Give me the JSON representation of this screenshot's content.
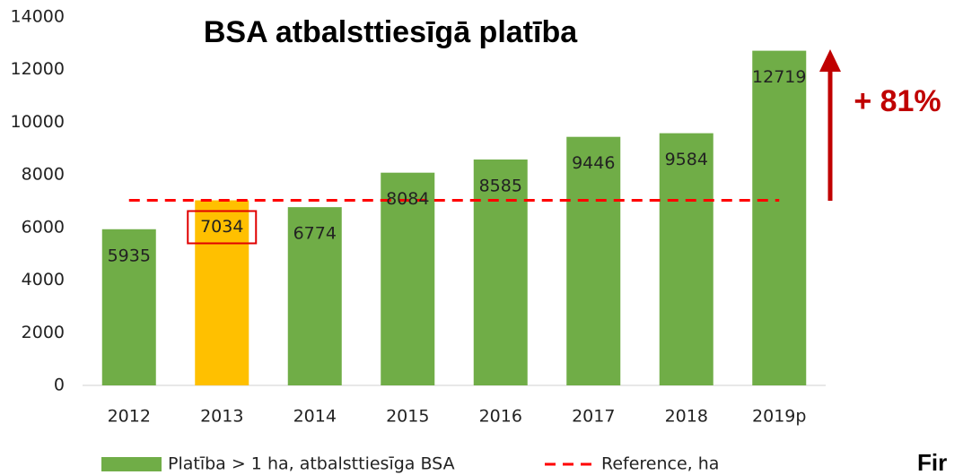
{
  "chart_data": {
    "type": "bar",
    "title": "BSA atbalsttiesīgā platība",
    "categories": [
      "2012",
      "2013",
      "2014",
      "2015",
      "2016",
      "2017",
      "2018",
      "2019p"
    ],
    "series": [
      {
        "name": "Platība > 1 ha, atbalsttiesīga BSA",
        "color": "#70ad47",
        "colors": [
          "#70ad47",
          "#ffc000",
          "#70ad47",
          "#70ad47",
          "#70ad47",
          "#70ad47",
          "#70ad47",
          "#70ad47"
        ],
        "values": [
          5935,
          7034,
          6774,
          8084,
          8585,
          9446,
          9584,
          12719
        ]
      }
    ],
    "reference": {
      "name": "Reference, ha",
      "value": 7034,
      "color": "#ff0000"
    },
    "annotation": "+ 81%",
    "corner_text": "Fir",
    "ylim": [
      0,
      14000
    ],
    "yticks": [
      0,
      2000,
      4000,
      6000,
      8000,
      10000,
      12000,
      14000
    ],
    "grid": false
  }
}
